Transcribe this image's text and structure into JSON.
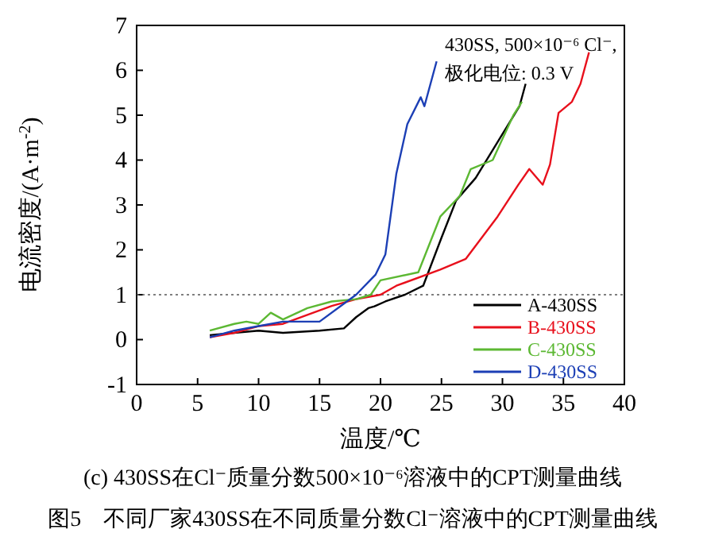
{
  "chart_data": {
    "type": "line",
    "title": "图5　不同厂家430SS在不同质量分数Cl⁻溶液中的CPT测量曲线",
    "subtitle": "(c) 430SS在Cl⁻质量分数500×10⁻⁶溶液中的CPT测量曲线",
    "xlabel": "温度/℃",
    "ylabel": "电流密度/(A·m$^{-2}$)",
    "annotations": [
      "430SS, 500×10⁻⁶ Cl⁻,",
      "极化电位: 0.3 V"
    ],
    "xlim": [
      0,
      40
    ],
    "xticks": [
      0,
      5,
      10,
      15,
      20,
      25,
      30,
      35,
      40
    ],
    "ylim": [
      -1,
      7
    ],
    "yticks": [
      -1,
      0,
      1,
      2,
      3,
      4,
      5,
      6,
      7
    ],
    "grid": false,
    "legend": "bottom right",
    "marker": "none",
    "line_style": "solid",
    "ref_lines": [
      {
        "axis": "y",
        "value": 1,
        "color": "#555555",
        "line_style": "dotted"
      }
    ],
    "series": [
      {
        "name": "A-430SS",
        "color": "#000000",
        "x": [
          6,
          8,
          10,
          12,
          15,
          17,
          18,
          19,
          19.5,
          20.4,
          22,
          23.5,
          25,
          26.2,
          27.8,
          29.6,
          31.4,
          31.9
        ],
        "values": [
          0.1,
          0.15,
          0.2,
          0.15,
          0.2,
          0.25,
          0.5,
          0.7,
          0.74,
          0.85,
          1.0,
          1.2,
          2.27,
          3.1,
          3.6,
          4.4,
          5.2,
          5.7
        ]
      },
      {
        "name": "B-430SS",
        "color": "#e8101c",
        "x": [
          6,
          8,
          10,
          12,
          14,
          16,
          18,
          20,
          21.3,
          24.9,
          27,
          29.6,
          31.3,
          32.2,
          33.3,
          33.9,
          34.6,
          35.7,
          36.4,
          37.1
        ],
        "values": [
          0.05,
          0.15,
          0.3,
          0.35,
          0.55,
          0.75,
          0.9,
          1.0,
          1.2,
          1.56,
          1.8,
          2.74,
          3.45,
          3.8,
          3.45,
          3.9,
          5.05,
          5.3,
          5.7,
          6.4
        ]
      },
      {
        "name": "C-430SS",
        "color": "#5cb833",
        "x": [
          6,
          8,
          9,
          10,
          11,
          12,
          14,
          16,
          18,
          19.2,
          20,
          23.1,
          24.9,
          26.5,
          27.4,
          29.2,
          30.9,
          31.6
        ],
        "values": [
          0.2,
          0.35,
          0.4,
          0.35,
          0.6,
          0.45,
          0.7,
          0.85,
          0.9,
          1.0,
          1.32,
          1.5,
          2.74,
          3.2,
          3.8,
          4.0,
          5.0,
          5.3
        ]
      },
      {
        "name": "D-430SS",
        "color": "#1c3fb5",
        "x": [
          6,
          8,
          10,
          12,
          15,
          17,
          18,
          19.6,
          20.4,
          21.3,
          22.2,
          23.3,
          23.6,
          24.6
        ],
        "values": [
          0.05,
          0.2,
          0.3,
          0.4,
          0.4,
          0.8,
          1.0,
          1.45,
          1.9,
          3.7,
          4.8,
          5.4,
          5.2,
          6.2
        ]
      }
    ]
  }
}
